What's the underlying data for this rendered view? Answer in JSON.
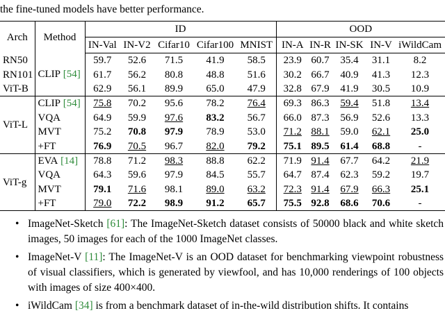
{
  "caption": "the fine-tuned models have better performance.",
  "table": {
    "header": {
      "arch": "Arch",
      "method": "Method",
      "groups": [
        {
          "name": "ID",
          "columns": [
            "IN-Val",
            "IN-V2",
            "Cifar10",
            "Cifar100",
            "MNIST"
          ]
        },
        {
          "name": "OOD",
          "columns": [
            "IN-A",
            "IN-R",
            "IN-SK",
            "IN-V",
            "iWildCam"
          ]
        }
      ]
    },
    "group1": {
      "method": "CLIP",
      "cite": "[54]",
      "rows": [
        {
          "arch": "RN50",
          "values": [
            "59.7",
            "52.6",
            "71.5",
            "41.9",
            "58.5",
            "23.9",
            "60.7",
            "35.4",
            "31.1",
            "8.2"
          ],
          "bold": [],
          "underline": []
        },
        {
          "arch": "RN101",
          "values": [
            "61.7",
            "56.2",
            "80.8",
            "48.8",
            "51.6",
            "30.2",
            "66.7",
            "40.9",
            "41.3",
            "12.3"
          ],
          "bold": [],
          "underline": []
        },
        {
          "arch": "ViT-B",
          "values": [
            "62.9",
            "56.1",
            "89.9",
            "65.0",
            "47.9",
            "32.8",
            "67.9",
            "41.9",
            "30.5",
            "10.9"
          ],
          "bold": [],
          "underline": []
        }
      ]
    },
    "groups": [
      {
        "arch": "ViT-L",
        "rows": [
          {
            "method": "CLIP",
            "cite": "[54]",
            "values": [
              "75.8",
              "70.2",
              "95.6",
              "78.2",
              "76.4",
              "69.3",
              "86.3",
              "59.4",
              "51.8",
              "13.4"
            ],
            "bold": [],
            "underline": [
              0,
              4,
              7,
              9
            ]
          },
          {
            "method": "VQA",
            "values": [
              "64.9",
              "59.9",
              "97.6",
              "83.2",
              "56.7",
              "66.0",
              "87.3",
              "56.9",
              "52.6",
              "13.3"
            ],
            "bold": [
              3
            ],
            "underline": [
              2
            ]
          },
          {
            "method": "MVT",
            "values": [
              "75.2",
              "70.8",
              "97.9",
              "78.9",
              "53.0",
              "71.2",
              "88.1",
              "59.0",
              "62.1",
              "25.0"
            ],
            "bold": [
              1,
              2,
              9
            ],
            "underline": [
              5,
              6,
              8
            ]
          },
          {
            "method": "+FT",
            "values": [
              "76.9",
              "70.5",
              "96.7",
              "82.0",
              "79.2",
              "75.1",
              "89.5",
              "61.4",
              "68.8",
              "-"
            ],
            "bold": [
              0,
              4,
              5,
              6,
              7,
              8
            ],
            "underline": [
              1,
              3
            ]
          }
        ]
      },
      {
        "arch": "ViT-g",
        "rows": [
          {
            "method": "EVA",
            "cite": "[14]",
            "values": [
              "78.8",
              "71.2",
              "98.3",
              "88.8",
              "62.2",
              "71.9",
              "91.4",
              "67.7",
              "64.2",
              "21.9"
            ],
            "bold": [],
            "underline": [
              2,
              6,
              9
            ]
          },
          {
            "method": "VQA",
            "values": [
              "64.3",
              "59.6",
              "97.9",
              "84.5",
              "55.7",
              "64.7",
              "87.4",
              "62.3",
              "59.2",
              "19.7"
            ],
            "bold": [],
            "underline": []
          },
          {
            "method": "MVT",
            "values": [
              "79.1",
              "71.6",
              "98.1",
              "89.0",
              "63.2",
              "72.3",
              "91.4",
              "67.9",
              "66.3",
              "25.1"
            ],
            "bold": [
              0,
              9
            ],
            "underline": [
              1,
              3,
              4,
              5,
              6,
              7,
              8
            ]
          },
          {
            "method": "+FT",
            "values": [
              "79.0",
              "72.2",
              "98.9",
              "91.2",
              "65.7",
              "75.5",
              "92.8",
              "68.6",
              "70.6",
              "-"
            ],
            "bold": [
              1,
              2,
              3,
              4,
              5,
              6,
              7,
              8
            ],
            "underline": [
              0
            ]
          }
        ]
      }
    ]
  },
  "bullets": [
    {
      "name": "ImageNet-Sketch",
      "cite": "[61]",
      "text": ": The ImageNet-Sketch dataset consists of 50000 black and white sketch images, 50 images for each of the 1000 ImageNet classes."
    },
    {
      "name": "ImageNet-V",
      "cite": "[11]",
      "text": ": The ImageNet-V is an OOD dataset for benchmarking viewpoint robustness of visual classifiers, which is generated by viewfool, and has 10,000 renderings of 100 objects with images of size 400×400."
    },
    {
      "name": "iWildCam",
      "cite": "[34]",
      "text": "is from a benchmark dataset of in-the-wild distribution shifts. It contains"
    }
  ]
}
